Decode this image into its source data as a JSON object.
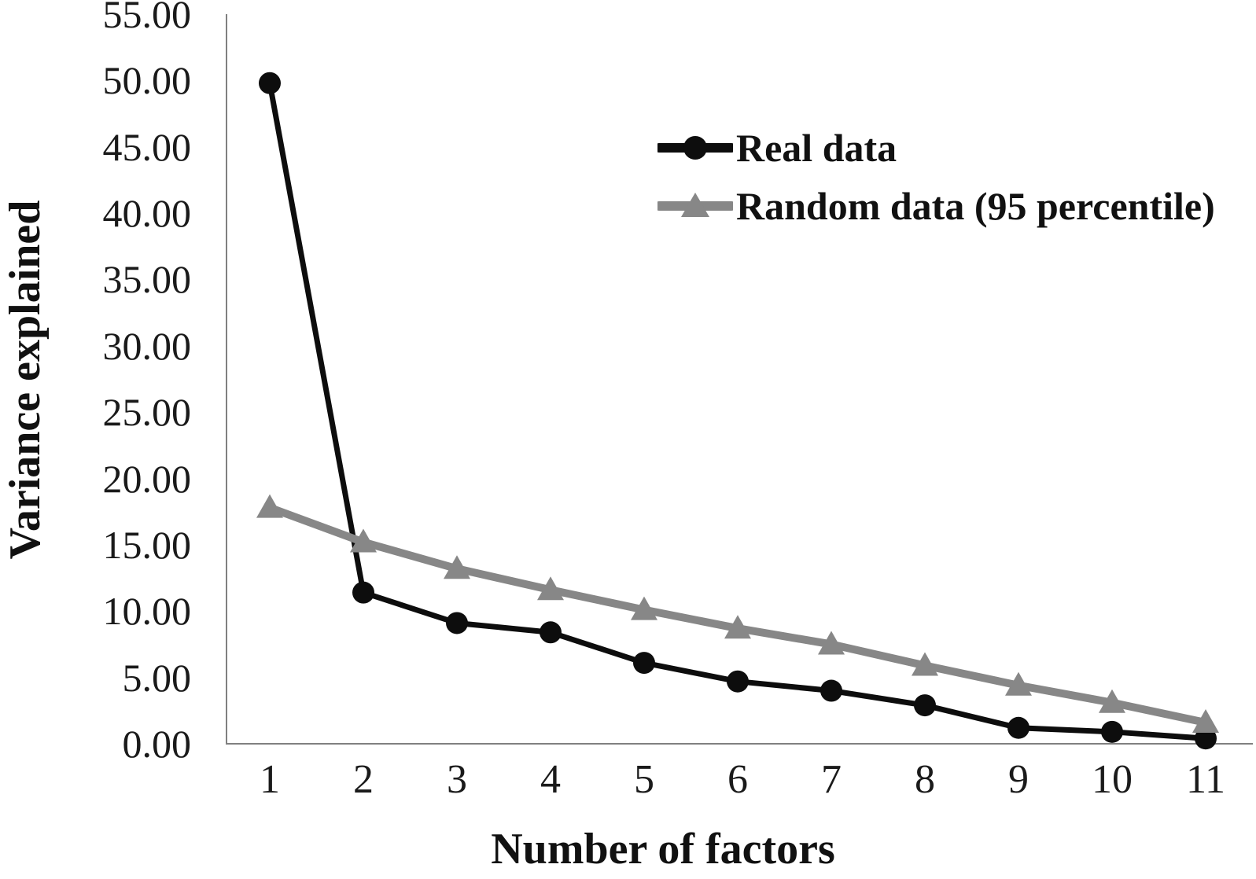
{
  "chart_data": {
    "type": "line",
    "title": "",
    "xlabel": "Number of factors",
    "ylabel": "Variance explained",
    "categories": [
      "1",
      "2",
      "3",
      "4",
      "5",
      "6",
      "7",
      "8",
      "9",
      "10",
      "11"
    ],
    "series": [
      {
        "name": "Real data",
        "color": "#0d0d0d",
        "marker": "circle",
        "values": [
          49.8,
          11.4,
          9.1,
          8.4,
          6.1,
          4.7,
          4.0,
          2.9,
          1.2,
          0.9,
          0.4
        ]
      },
      {
        "name": "Random data (95 percentile)",
        "color": "#878787",
        "marker": "triangle",
        "values": [
          17.8,
          15.2,
          13.2,
          11.6,
          10.1,
          8.7,
          7.5,
          5.9,
          4.4,
          3.1,
          1.6
        ]
      }
    ],
    "ylim": [
      0,
      55
    ],
    "ytick_step": 5,
    "yticks": [
      "55.00",
      "50.00",
      "45.00",
      "40.00",
      "35.00",
      "30.00",
      "25.00",
      "20.00",
      "15.00",
      "10.00",
      "5.00",
      "0.00"
    ],
    "grid": false,
    "legend_position": "inside-upper-right",
    "axis_color": "#808080",
    "text_color": "#1a1a1a"
  }
}
